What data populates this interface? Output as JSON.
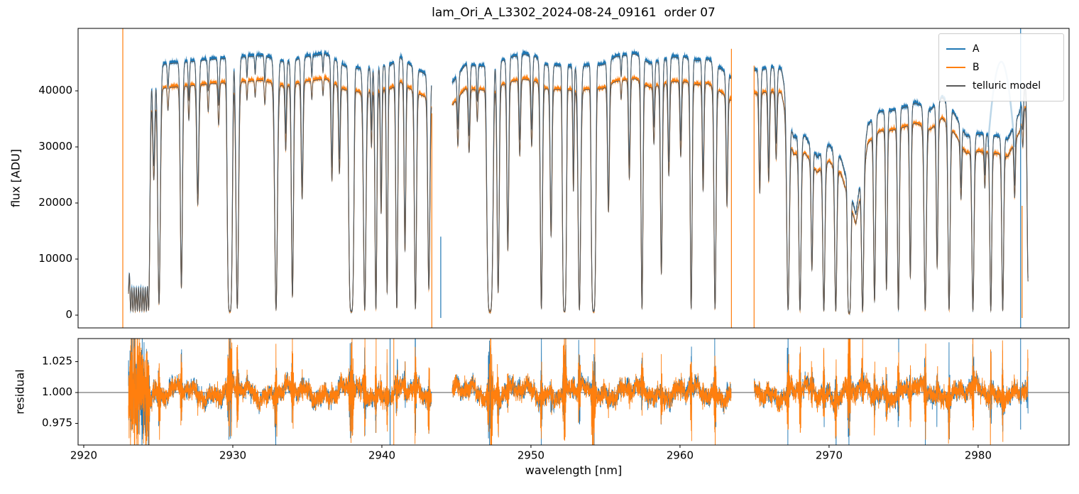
{
  "title": "lam_Ori_A_L3302_2024-08-24_09161  order 07",
  "chart_data": {
    "type": "line",
    "title": "lam_Ori_A_L3302_2024-08-24_09161  order 07",
    "xlabel": "wavelength [nm]",
    "xlim": [
      2919.62,
      2986.1
    ],
    "xticks": [
      2920,
      2930,
      2940,
      2950,
      2960,
      2970,
      2980
    ],
    "xtick_labels": [
      "2920",
      "2930",
      "2940",
      "2950",
      "2960",
      "2970",
      "2980"
    ],
    "legend_position": "upper right",
    "grid": false,
    "panels": [
      {
        "name": "flux",
        "ylabel": "flux [ADU]",
        "ylim": [
          -2280,
          51140
        ],
        "yticks": [
          0,
          10000,
          20000,
          30000,
          40000
        ],
        "ytick_labels": [
          "0",
          "10000",
          "20000",
          "30000",
          "40000"
        ]
      },
      {
        "name": "residual",
        "ylabel": "residual",
        "ylim": [
          0.9575,
          1.0437
        ],
        "yticks": [
          0.975,
          1.0,
          1.025
        ],
        "ytick_labels": [
          "0.975",
          "1.000",
          "1.025"
        ],
        "hline": 1.0,
        "hline_color": "#555555"
      }
    ],
    "series": [
      {
        "name": "A",
        "color": "#1f77b4"
      },
      {
        "name": "B",
        "color": "#ff7f0e"
      },
      {
        "name": "telluric model",
        "color": "#595959"
      }
    ],
    "segments": [
      [
        2923.0,
        2943.33
      ],
      [
        2944.72,
        2963.43
      ],
      [
        2964.98,
        2983.35
      ]
    ],
    "b_scale": 0.905,
    "model_scale": 0.995,
    "sample_step": 0.006,
    "continuum_A": [
      [
        2922.6,
        43500
      ],
      [
        2923.0,
        44000
      ],
      [
        2925.5,
        45000
      ],
      [
        2928.5,
        45800
      ],
      [
        2931.0,
        46300
      ],
      [
        2932.0,
        46500
      ],
      [
        2933.5,
        45300
      ],
      [
        2935.0,
        46300
      ],
      [
        2936.2,
        46800
      ],
      [
        2937.5,
        44600
      ],
      [
        2938.6,
        44100
      ],
      [
        2940.6,
        44800
      ],
      [
        2941.2,
        46200
      ],
      [
        2942.0,
        44600
      ],
      [
        2942.6,
        43600
      ],
      [
        2943.4,
        42600
      ],
      [
        2944.7,
        41500
      ],
      [
        2945.6,
        44800
      ],
      [
        2947.0,
        44500
      ],
      [
        2948.8,
        46300
      ],
      [
        2949.6,
        46700
      ],
      [
        2950.3,
        46300
      ],
      [
        2951.0,
        44800
      ],
      [
        2952.8,
        44500
      ],
      [
        2954.8,
        44800
      ],
      [
        2955.7,
        46300
      ],
      [
        2957.0,
        46800
      ],
      [
        2958.0,
        45000
      ],
      [
        2959.5,
        46200
      ],
      [
        2960.3,
        46200
      ],
      [
        2961.1,
        45600
      ],
      [
        2961.9,
        45800
      ],
      [
        2962.7,
        44200
      ],
      [
        2963.5,
        42300
      ],
      [
        2965.0,
        43800
      ],
      [
        2966.2,
        44300
      ],
      [
        2966.8,
        44000
      ],
      [
        2967.6,
        31800
      ],
      [
        2968.4,
        32000
      ],
      [
        2969.2,
        28200
      ],
      [
        2970.0,
        30400
      ],
      [
        2970.8,
        28000
      ],
      [
        2971.8,
        18000
      ],
      [
        2972.6,
        34000
      ],
      [
        2973.4,
        36400
      ],
      [
        2974.2,
        36600
      ],
      [
        2975.0,
        37200
      ],
      [
        2975.8,
        38000
      ],
      [
        2976.8,
        36700
      ],
      [
        2977.6,
        39000
      ],
      [
        2978.4,
        36000
      ],
      [
        2979.2,
        32000
      ],
      [
        2980.0,
        32400
      ],
      [
        2981.2,
        32000
      ],
      [
        2982.0,
        31400
      ],
      [
        2982.8,
        36400
      ],
      [
        2983.35,
        44000
      ]
    ],
    "absorption_lines": [
      [
        2922.98,
        0.9,
        0.13
      ],
      [
        2923.15,
        0.97,
        0.12
      ],
      [
        2923.3,
        0.97,
        0.12
      ],
      [
        2923.45,
        0.97,
        0.12
      ],
      [
        2923.6,
        0.97,
        0.12
      ],
      [
        2923.75,
        0.97,
        0.12
      ],
      [
        2923.9,
        0.97,
        0.12
      ],
      [
        2924.05,
        0.97,
        0.12
      ],
      [
        2924.2,
        0.97,
        0.12
      ],
      [
        2924.35,
        0.97,
        0.12
      ],
      [
        2924.7,
        0.4,
        0.1
      ],
      [
        2925.05,
        0.95,
        0.12
      ],
      [
        2925.65,
        0.1,
        0.06
      ],
      [
        2926.55,
        0.88,
        0.1
      ],
      [
        2927.05,
        0.15,
        0.06
      ],
      [
        2927.65,
        0.52,
        0.1
      ],
      [
        2928.35,
        0.12,
        0.06
      ],
      [
        2929.05,
        0.18,
        0.07
      ],
      [
        2929.8,
        0.985,
        0.2
      ],
      [
        2930.3,
        0.97,
        0.12
      ],
      [
        2930.95,
        0.08,
        0.05
      ],
      [
        2931.5,
        0.07,
        0.05
      ],
      [
        2932.15,
        0.1,
        0.06
      ],
      [
        2932.9,
        0.975,
        0.13
      ],
      [
        2933.55,
        0.28,
        0.07
      ],
      [
        2934.0,
        0.92,
        0.1
      ],
      [
        2934.65,
        0.5,
        0.09
      ],
      [
        2935.3,
        0.08,
        0.05
      ],
      [
        2936.05,
        0.07,
        0.05
      ],
      [
        2936.65,
        0.42,
        0.08
      ],
      [
        2937.15,
        0.38,
        0.08
      ],
      [
        2937.95,
        0.985,
        0.2
      ],
      [
        2938.85,
        0.975,
        0.12
      ],
      [
        2939.3,
        0.25,
        0.06
      ],
      [
        2939.6,
        0.97,
        0.09
      ],
      [
        2939.95,
        0.55,
        0.07
      ],
      [
        2940.35,
        0.9,
        0.07
      ],
      [
        2941.0,
        0.97,
        0.09
      ],
      [
        2941.55,
        0.72,
        0.08
      ],
      [
        2942.25,
        0.97,
        0.1
      ],
      [
        2943.15,
        0.88,
        0.1
      ],
      [
        2945.1,
        0.22,
        0.07
      ],
      [
        2945.85,
        0.28,
        0.08
      ],
      [
        2946.4,
        0.14,
        0.06
      ],
      [
        2947.25,
        0.985,
        0.24
      ],
      [
        2947.8,
        0.9,
        0.1
      ],
      [
        2948.45,
        0.72,
        0.09
      ],
      [
        2949.25,
        0.32,
        0.08
      ],
      [
        2950.05,
        0.28,
        0.08
      ],
      [
        2950.7,
        0.97,
        0.1
      ],
      [
        2951.35,
        0.65,
        0.09
      ],
      [
        2952.25,
        0.985,
        0.16
      ],
      [
        2952.85,
        0.45,
        0.06
      ],
      [
        2953.25,
        0.975,
        0.12
      ],
      [
        2954.2,
        0.985,
        0.18
      ],
      [
        2955.2,
        0.55,
        0.09
      ],
      [
        2956.05,
        0.08,
        0.05
      ],
      [
        2956.6,
        0.42,
        0.08
      ],
      [
        2957.45,
        0.97,
        0.09
      ],
      [
        2958.25,
        0.25,
        0.07
      ],
      [
        2958.75,
        0.82,
        0.09
      ],
      [
        2959.25,
        0.4,
        0.08
      ],
      [
        2960.05,
        0.32,
        0.08
      ],
      [
        2960.75,
        0.97,
        0.09
      ],
      [
        2961.55,
        0.46,
        0.08
      ],
      [
        2962.35,
        0.97,
        0.1
      ],
      [
        2963.15,
        0.5,
        0.08
      ],
      [
        2965.35,
        0.45,
        0.08
      ],
      [
        2965.95,
        0.4,
        0.08
      ],
      [
        2966.45,
        0.3,
        0.08
      ],
      [
        2967.25,
        0.97,
        0.12
      ],
      [
        2968.05,
        0.97,
        0.1
      ],
      [
        2968.85,
        0.7,
        0.08
      ],
      [
        2969.65,
        0.97,
        0.1
      ],
      [
        2970.45,
        0.97,
        0.1
      ],
      [
        2971.35,
        0.985,
        0.14
      ],
      [
        2972.25,
        0.97,
        0.1
      ],
      [
        2973.05,
        0.92,
        0.09
      ],
      [
        2973.85,
        0.86,
        0.08
      ],
      [
        2974.65,
        0.97,
        0.09
      ],
      [
        2975.45,
        0.8,
        0.08
      ],
      [
        2976.45,
        0.97,
        0.11
      ],
      [
        2977.25,
        0.75,
        0.08
      ],
      [
        2978.05,
        0.97,
        0.1
      ],
      [
        2978.85,
        0.32,
        0.07
      ],
      [
        2979.65,
        0.97,
        0.1
      ],
      [
        2980.45,
        0.22,
        0.06
      ],
      [
        2980.85,
        0.97,
        0.09
      ],
      [
        2981.65,
        0.97,
        0.09
      ],
      [
        2982.45,
        0.32,
        0.07
      ],
      [
        2983.0,
        0.15,
        0.06
      ],
      [
        2983.35,
        0.85,
        0.09
      ]
    ],
    "spikes_top": [
      {
        "x": 2922.62,
        "s": 1,
        "y0": -2300,
        "y1": 51200
      },
      {
        "x": 2943.35,
        "s": 1,
        "y0": -2300,
        "y1": 36000
      },
      {
        "x": 2943.95,
        "s": 0,
        "y0": -500,
        "y1": 14000
      },
      {
        "x": 2963.45,
        "s": 1,
        "y0": -2300,
        "y1": 47500
      },
      {
        "x": 2964.97,
        "s": 1,
        "y0": -2300,
        "y1": 44500
      },
      {
        "x": 2982.85,
        "s": 0,
        "y0": -2300,
        "y1": 51200
      },
      {
        "x": 2982.95,
        "s": 1,
        "y0": -500,
        "y1": 19500
      }
    ],
    "spikes_residual": [
      {
        "x": 2940.55,
        "s": 0,
        "y0": 0.9575,
        "y1": 1.0437
      },
      {
        "x": 2940.8,
        "s": 1,
        "y0": 0.9575,
        "y1": 1.0437
      },
      {
        "x": 2923.15,
        "s": 1,
        "y0": 0.985,
        "y1": 1.032
      },
      {
        "x": 2982.85,
        "s": 0,
        "y0": 0.97,
        "y1": 1.0437
      }
    ],
    "arc": {
      "x0": 2980.65,
      "x1": 2982.45,
      "base": 30000,
      "peak": 45200,
      "color": "rgba(31,119,180,0.30)",
      "lw": 2.5
    },
    "noise": {
      "seed": 42,
      "trace_amp_A": 150,
      "trace_amp_B": 120,
      "res_base": 0.0035,
      "res_burst": 0.02,
      "res_burst_pow": 3,
      "lf": [
        {
          "a": 0.0045,
          "p": 3.8,
          "ph": 0.8
        },
        {
          "a": 0.0035,
          "p": 1.25,
          "ph": 2.3
        },
        {
          "a": 0.0022,
          "p": 0.52,
          "ph": 4.4
        },
        {
          "a": 0.0015,
          "p": 0.18,
          "ph": 1.0
        }
      ]
    }
  }
}
